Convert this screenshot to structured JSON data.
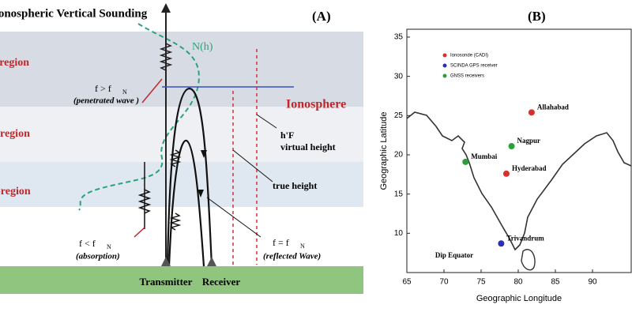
{
  "panel_a": {
    "title": "Ionospheric Vertical Sounding",
    "label": "(A)",
    "regions": [
      "F-region",
      "E-region",
      "D-region"
    ],
    "density_label": "N(h)",
    "ionosphere": "Ionosphere",
    "penetrated": {
      "condition": "f > f",
      "subscript": "N",
      "note": "(penetrated wave )"
    },
    "absorption": {
      "condition": "f < f",
      "subscript": "N",
      "note": "(absorption)"
    },
    "reflected": {
      "condition": "f = f",
      "subscript": "N",
      "note": "(reflected Wave)"
    },
    "virtual_height": {
      "symbol": "h'F",
      "label": "virtual height"
    },
    "true_height": "true height",
    "transmitter": "Transmitter",
    "receiver": "Receiver"
  },
  "chart_data": {
    "type": "scatter",
    "label": "(B)",
    "x_label": "Geographic Longitude",
    "y_label": "Geographic Latitude",
    "xlim": [
      65,
      95
    ],
    "ylim": [
      5,
      36
    ],
    "xticks": [
      65,
      70,
      75,
      80,
      85,
      90
    ],
    "yticks": [
      10,
      15,
      20,
      25,
      30,
      35
    ],
    "annotation": "Dip Equator",
    "series": [
      {
        "name": "Ionosonde (CADI)",
        "color": "#d9302c",
        "x": [
          81.8,
          78.4
        ],
        "values": [
          25.4,
          17.6
        ],
        "labels": [
          "Allahabad",
          "Hyderabad"
        ]
      },
      {
        "name": "SCINDA GPS receiver",
        "color": "#2b2fb8",
        "x": [
          77.7
        ],
        "values": [
          8.7
        ],
        "labels": [
          "Trivandrum"
        ]
      },
      {
        "name": "GNSS receivers",
        "color": "#2e9e3a",
        "x": [
          79.1,
          72.9
        ],
        "values": [
          21.1,
          19.1
        ],
        "labels": [
          "Nagpur",
          "Mumbai"
        ]
      }
    ]
  }
}
